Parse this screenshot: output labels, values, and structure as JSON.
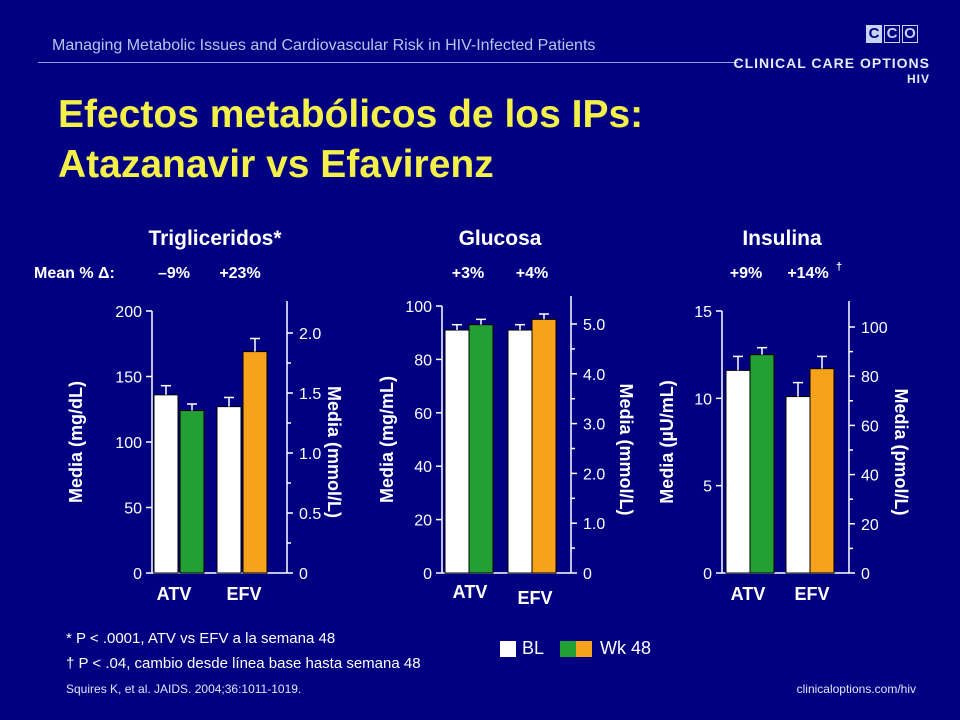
{
  "header": {
    "text": "Managing Metabolic Issues and Cardiovascular Risk in HIV-Infected Patients",
    "logo_letters": [
      "C",
      "C",
      "O"
    ],
    "brand_line1": "CLINICAL CARE OPTIONS",
    "brand_line2": "HIV"
  },
  "title": {
    "line1": "Efectos metabólicos de los IPs:",
    "line2": "Atazanavir vs Efavirenz"
  },
  "mean_change_label": "Mean % Δ:",
  "colors": {
    "background": "#000080",
    "title": "#f3f04a",
    "bl": "#ffffff",
    "atv_wk48": "#22a033",
    "efv_wk48": "#f7a21b"
  },
  "chart_data": [
    {
      "type": "bar",
      "title": "Trigliceridos*",
      "categories": [
        "ATV",
        "EFV"
      ],
      "series": [
        {
          "name": "BL",
          "values": [
            136,
            127
          ],
          "errors": [
            7,
            7
          ]
        },
        {
          "name": "Wk 48",
          "values": [
            124,
            169
          ],
          "errors": [
            5,
            10
          ]
        }
      ],
      "mean_change": [
        "–9%",
        "+23%"
      ],
      "ylabel": "Media (mg/dL)",
      "ylim": [
        0,
        200
      ],
      "yticks": [
        "0",
        "50",
        "100",
        "150",
        "200"
      ],
      "y2label": "Media (mmol/L)",
      "y2ticks": [
        "0",
        "0.5",
        "1.0",
        "1.5",
        "2.0"
      ],
      "grid": false
    },
    {
      "type": "bar",
      "title": "Glucosa",
      "categories": [
        "ATV",
        "EFV"
      ],
      "series": [
        {
          "name": "BL",
          "values": [
            91,
            91
          ],
          "errors": [
            2,
            2
          ]
        },
        {
          "name": "Wk 48",
          "values": [
            93,
            95
          ],
          "errors": [
            2,
            2
          ]
        }
      ],
      "mean_change": [
        "+3%",
        "+4%"
      ],
      "ylabel": "Media (mg/mL)",
      "ylim": [
        0,
        100
      ],
      "yticks": [
        "0",
        "20",
        "40",
        "60",
        "80",
        "100"
      ],
      "y2label": "Media (mmol/L)",
      "y2ticks": [
        "0",
        "1.0",
        "2.0",
        "3.0",
        "4.0",
        "5.0"
      ],
      "grid": false
    },
    {
      "type": "bar",
      "title": "Insulina",
      "categories": [
        "ATV",
        "EFV"
      ],
      "series": [
        {
          "name": "BL",
          "values": [
            11.6,
            10.1
          ],
          "errors": [
            0.8,
            0.8
          ]
        },
        {
          "name": "Wk 48",
          "values": [
            12.5,
            11.7
          ],
          "errors": [
            0.4,
            0.7
          ]
        }
      ],
      "mean_change": [
        "+9%",
        "+14%"
      ],
      "mean_change_mark": "†",
      "ylabel": "Media (µU/mL)",
      "ylim": [
        0,
        15
      ],
      "yticks": [
        "0",
        "5",
        "10",
        "15"
      ],
      "y2label": "Media (pmol/L)",
      "y2ticks": [
        "0",
        "20",
        "40",
        "60",
        "80",
        "100"
      ],
      "grid": false
    }
  ],
  "legend": {
    "bl": "BL",
    "wk48": "Wk 48"
  },
  "footnotes": [
    "* P < .0001, ATV vs EFV a la semana 48",
    "† P < .04, cambio desde línea base hasta semana 48"
  ],
  "reference": "Squires K, et al. JAIDS. 2004;36:1011-1019.",
  "url": "clinicaloptions.com/hiv"
}
